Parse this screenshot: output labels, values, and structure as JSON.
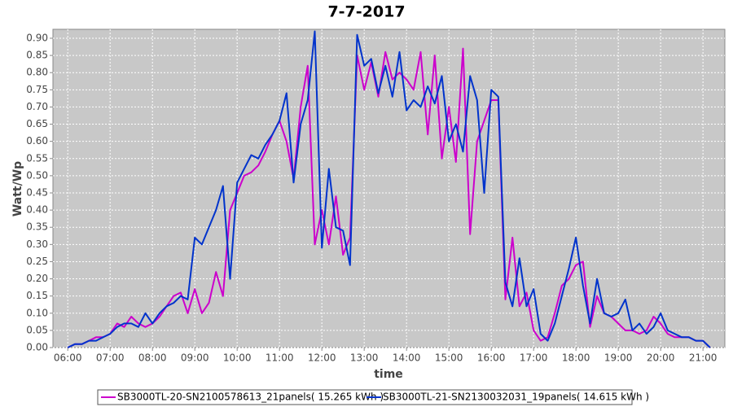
{
  "chart_data": {
    "type": "line",
    "title": "7-7-2017",
    "xlabel": "time",
    "ylabel": "Watt/Wp",
    "x": [
      "06:00",
      "06:10",
      "06:20",
      "06:30",
      "06:40",
      "06:50",
      "07:00",
      "07:10",
      "07:20",
      "07:30",
      "07:40",
      "07:50",
      "08:00",
      "08:10",
      "08:20",
      "08:30",
      "08:40",
      "08:50",
      "09:00",
      "09:10",
      "09:20",
      "09:30",
      "09:40",
      "09:50",
      "10:00",
      "10:10",
      "10:20",
      "10:30",
      "10:40",
      "10:50",
      "11:00",
      "11:10",
      "11:20",
      "11:30",
      "11:40",
      "11:50",
      "12:00",
      "12:10",
      "12:20",
      "12:30",
      "12:40",
      "12:50",
      "13:00",
      "13:10",
      "13:20",
      "13:30",
      "13:40",
      "13:50",
      "14:00",
      "14:10",
      "14:20",
      "14:30",
      "14:40",
      "14:50",
      "15:00",
      "15:10",
      "15:20",
      "15:30",
      "15:40",
      "15:50",
      "16:00",
      "16:10",
      "16:20",
      "16:30",
      "16:40",
      "16:50",
      "17:00",
      "17:10",
      "17:20",
      "17:30",
      "17:40",
      "17:50",
      "18:00",
      "18:10",
      "18:20",
      "18:30",
      "18:40",
      "18:50",
      "19:00",
      "19:10",
      "19:20",
      "19:30",
      "19:40",
      "19:50",
      "20:00",
      "20:10",
      "20:20",
      "20:30",
      "20:40",
      "20:50",
      "21:00",
      "21:10"
    ],
    "series": [
      {
        "name": "SB3000TL-20-SN2100578613_21panels( 15.265 kWh )",
        "color": "#cc00cc",
        "values": [
          0,
          0.01,
          0.01,
          0.02,
          0.03,
          0.03,
          0.04,
          0.07,
          0.06,
          0.09,
          0.07,
          0.06,
          0.07,
          0.09,
          0.12,
          0.15,
          0.16,
          0.1,
          0.17,
          0.1,
          0.13,
          0.22,
          0.15,
          0.4,
          0.45,
          0.5,
          0.51,
          0.53,
          0.57,
          0.62,
          0.66,
          0.6,
          0.49,
          0.7,
          0.82,
          0.3,
          0.4,
          0.3,
          0.44,
          0.27,
          0.32,
          0.85,
          0.75,
          0.83,
          0.73,
          0.86,
          0.78,
          0.8,
          0.78,
          0.75,
          0.86,
          0.62,
          0.85,
          0.55,
          0.7,
          0.54,
          0.87,
          0.33,
          0.6,
          0.66,
          0.72,
          0.72,
          0.14,
          0.32,
          0.12,
          0.16,
          0.05,
          0.02,
          0.03,
          0.1,
          0.18,
          0.2,
          0.24,
          0.25,
          0.06,
          0.15,
          0.1,
          0.09,
          0.07,
          0.05,
          0.05,
          0.04,
          0.05,
          0.09,
          0.07,
          0.04,
          0.03,
          0.03,
          0.03,
          0.02,
          0.02,
          0
        ]
      },
      {
        "name": "SB3000TL-21-SN2130032031_19panels( 14.615 kWh )",
        "color": "#0033cc",
        "values": [
          0,
          0.01,
          0.01,
          0.02,
          0.02,
          0.03,
          0.04,
          0.06,
          0.07,
          0.07,
          0.06,
          0.1,
          0.07,
          0.1,
          0.12,
          0.13,
          0.15,
          0.14,
          0.32,
          0.3,
          0.35,
          0.4,
          0.47,
          0.2,
          0.48,
          0.52,
          0.56,
          0.55,
          0.59,
          0.62,
          0.66,
          0.74,
          0.48,
          0.65,
          0.72,
          0.92,
          0.29,
          0.52,
          0.35,
          0.34,
          0.24,
          0.91,
          0.82,
          0.84,
          0.74,
          0.82,
          0.73,
          0.86,
          0.69,
          0.72,
          0.7,
          0.76,
          0.71,
          0.79,
          0.6,
          0.65,
          0.57,
          0.79,
          0.72,
          0.45,
          0.75,
          0.73,
          0.19,
          0.12,
          0.26,
          0.12,
          0.17,
          0.04,
          0.02,
          0.07,
          0.15,
          0.23,
          0.32,
          0.18,
          0.07,
          0.2,
          0.1,
          0.09,
          0.1,
          0.14,
          0.05,
          0.07,
          0.04,
          0.06,
          0.1,
          0.05,
          0.04,
          0.03,
          0.03,
          0.02,
          0.02,
          0
        ]
      }
    ],
    "xlim": [
      "05:39",
      "21:31"
    ],
    "xticks": [
      "06:00",
      "07:00",
      "08:00",
      "09:00",
      "10:00",
      "11:00",
      "12:00",
      "13:00",
      "14:00",
      "15:00",
      "16:00",
      "17:00",
      "18:00",
      "19:00",
      "20:00",
      "21:00"
    ],
    "ylim": [
      0,
      0.926
    ],
    "yticks": [
      {
        "value": 0,
        "label": "0.00"
      },
      {
        "value": 0.05,
        "label": "0.05"
      },
      {
        "value": 0.1,
        "label": "0.10"
      },
      {
        "value": 0.15,
        "label": "0.15"
      },
      {
        "value": 0.2,
        "label": "0.20"
      },
      {
        "value": 0.25,
        "label": "0.25"
      },
      {
        "value": 0.3,
        "label": "0.30"
      },
      {
        "value": 0.35,
        "label": "0.35"
      },
      {
        "value": 0.4,
        "label": "0.40"
      },
      {
        "value": 0.45,
        "label": "0.45"
      },
      {
        "value": 0.5,
        "label": "0.50"
      },
      {
        "value": 0.55,
        "label": "0.55"
      },
      {
        "value": 0.6,
        "label": "0.60"
      },
      {
        "value": 0.65,
        "label": "0.65"
      },
      {
        "value": 0.7,
        "label": "0.70"
      },
      {
        "value": 0.75,
        "label": "0.75"
      },
      {
        "value": 0.8,
        "label": "0.80"
      },
      {
        "value": 0.85,
        "label": "0.85"
      },
      {
        "value": 0.9,
        "label": "0.90"
      }
    ],
    "grid": true
  }
}
